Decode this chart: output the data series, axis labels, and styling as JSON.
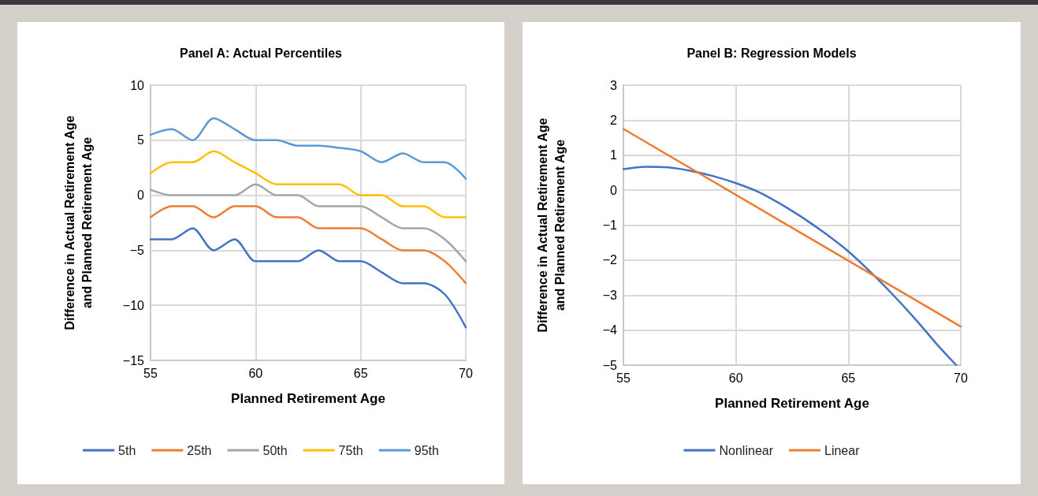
{
  "chart_data": [
    {
      "type": "line",
      "title": "Panel A: Actual Percentiles",
      "xlabel": "Planned Retirement Age",
      "ylabel": "Difference in Actual Retirement Age\nand Planned Retirement Age",
      "x": [
        55,
        56,
        57,
        58,
        59,
        60,
        61,
        62,
        63,
        64,
        65,
        66,
        67,
        68,
        69,
        70
      ],
      "xlim": [
        55,
        70
      ],
      "xticks": [
        55,
        60,
        65,
        70
      ],
      "ylim": [
        -15,
        10
      ],
      "yticks": [
        -15,
        -10,
        -5,
        0,
        5,
        10
      ],
      "grid": true,
      "legend": "bottom",
      "marker": "none",
      "line_style": "solid",
      "series": [
        {
          "name": "5th",
          "color": "#4472c4",
          "values": [
            -4,
            -4,
            -3,
            -5,
            -4,
            -6,
            -6,
            -6,
            -5,
            -6,
            -6,
            -7,
            -8,
            -8,
            -9,
            -12
          ]
        },
        {
          "name": "25th",
          "color": "#ed7d31",
          "values": [
            -2,
            -1,
            -1,
            -2,
            -1,
            -1,
            -2,
            -2,
            -3,
            -3,
            -3,
            -4,
            -5,
            -5,
            -6,
            -8
          ]
        },
        {
          "name": "50th",
          "color": "#a5a5a5",
          "values": [
            0.5,
            0,
            0,
            0,
            0,
            1,
            0,
            0,
            -1,
            -1,
            -1,
            -2,
            -3,
            -3,
            -4,
            -6
          ]
        },
        {
          "name": "75th",
          "color": "#ffc000",
          "values": [
            2,
            3,
            3,
            4,
            3,
            2,
            1,
            1,
            1,
            1,
            0,
            0,
            -1,
            -1,
            -2,
            -2
          ]
        },
        {
          "name": "95th",
          "color": "#5b9bd5",
          "values": [
            5.5,
            6,
            5,
            7,
            6,
            5,
            5,
            4.5,
            4.5,
            4.3,
            4,
            3,
            3.8,
            3,
            3,
            1.5
          ]
        }
      ]
    },
    {
      "type": "line",
      "title": "Panel B: Regression Models",
      "xlabel": "Planned Retirement Age",
      "ylabel": "Difference in Actual Retirement Age\nand Planned Retirement Age",
      "xlim": [
        55,
        70
      ],
      "xticks": [
        55,
        60,
        65,
        70
      ],
      "ylim": [
        -5,
        3
      ],
      "yticks": [
        -5,
        -4,
        -3,
        -2,
        -1,
        0,
        1,
        2,
        3
      ],
      "grid": true,
      "legend": "bottom",
      "marker": "none",
      "line_style": "solid",
      "series": [
        {
          "name": "Nonlinear",
          "color": "#4472c4",
          "x": [
            55,
            56,
            57,
            58,
            59,
            60,
            61,
            62,
            63,
            64,
            65,
            66,
            67,
            68,
            69,
            69.8
          ],
          "values": [
            0.6,
            0.67,
            0.65,
            0.55,
            0.4,
            0.2,
            -0.05,
            -0.4,
            -0.8,
            -1.25,
            -1.75,
            -2.35,
            -3,
            -3.7,
            -4.45,
            -5
          ]
        },
        {
          "name": "Linear",
          "color": "#ed7d31",
          "x": [
            55,
            70
          ],
          "values": [
            1.75,
            -3.9
          ]
        }
      ]
    }
  ]
}
